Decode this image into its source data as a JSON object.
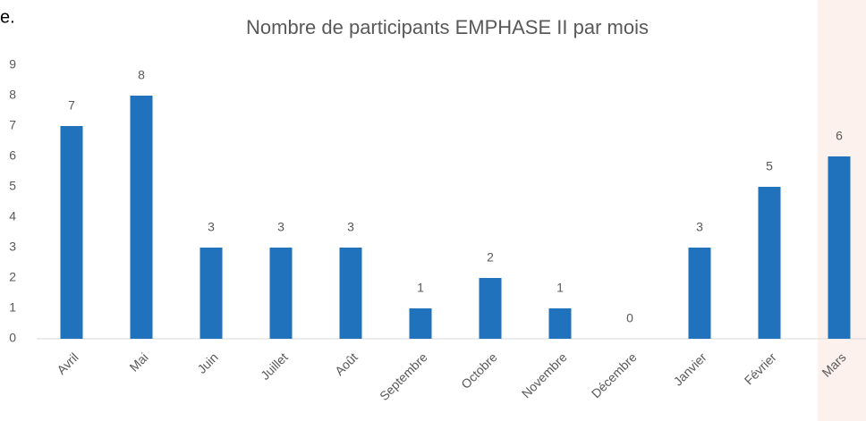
{
  "chart_data": {
    "type": "bar",
    "annotation": "e.",
    "title": "Nombre de participants EMPHASE II par mois",
    "categories": [
      "Avril",
      "Mai",
      "Juin",
      "Juillet",
      "Août",
      "Septembre",
      "Octobre",
      "Novembre",
      "Décembre",
      "Janvier",
      "Février",
      "Mars"
    ],
    "values": [
      7,
      8,
      3,
      3,
      3,
      1,
      2,
      1,
      0,
      3,
      5,
      6
    ],
    "color": "#1f72bb",
    "ylim": [
      0,
      9
    ],
    "yticks": [
      0,
      1,
      2,
      3,
      4,
      5,
      6,
      7,
      8,
      9
    ],
    "grid": false,
    "highlight": "Mars",
    "highlight_color": "#fdf1ee"
  }
}
